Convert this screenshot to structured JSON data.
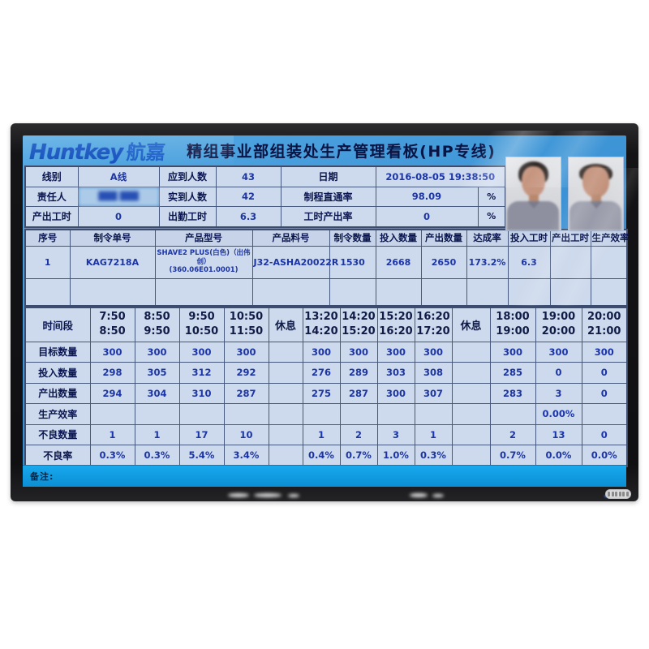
{
  "header": {
    "logo_en": "Huntkey",
    "logo_cn": "航嘉",
    "title": "精组事业部组装处生产管理看板(HP专线)"
  },
  "info_table": {
    "rows": [
      [
        "线别",
        "A线",
        "应到人数",
        "43",
        "日期",
        "2016-08-05 19:38:50"
      ],
      [
        "责任人",
        "███ ███",
        "实到人数",
        "42",
        "制程直通率",
        "98.09",
        "%"
      ],
      [
        "产出工时",
        "0",
        "出勤工时",
        "6.3",
        "工时产出率",
        "0",
        "%"
      ]
    ]
  },
  "main_table": {
    "headers": [
      "序号",
      "制令单号",
      "产品型号",
      "产品料号",
      "制令数量",
      "投入数量",
      "产出数量",
      "达成率",
      "投入工时",
      "产出工时",
      "生产效率"
    ],
    "rows": [
      [
        "1",
        "KAG7218A",
        "SHAVE2 PLUS(白色)（出伟创）\n(360.06E01.0001)",
        "J32-ASHA20022R",
        "1530",
        "2668",
        "2650",
        "173.2%",
        "6.3",
        "",
        ""
      ],
      [
        "",
        "",
        "",
        "",
        "",
        "",
        "",
        "",
        "",
        "",
        ""
      ]
    ]
  },
  "time_table": {
    "label_header": "时间段",
    "columns": [
      {
        "type": "time",
        "from": "7:50",
        "to": "8:50"
      },
      {
        "type": "time",
        "from": "8:50",
        "to": "9:50"
      },
      {
        "type": "time",
        "from": "9:50",
        "to": "10:50"
      },
      {
        "type": "time",
        "from": "10:50",
        "to": "11:50"
      },
      {
        "type": "break",
        "label": "休息"
      },
      {
        "type": "time",
        "from": "13:20",
        "to": "14:20"
      },
      {
        "type": "time",
        "from": "14:20",
        "to": "15:20"
      },
      {
        "type": "time",
        "from": "15:20",
        "to": "16:20"
      },
      {
        "type": "time",
        "from": "16:20",
        "to": "17:20"
      },
      {
        "type": "break",
        "label": "休息"
      },
      {
        "type": "time",
        "from": "18:00",
        "to": "19:00"
      },
      {
        "type": "time",
        "from": "19:00",
        "to": "20:00"
      },
      {
        "type": "time",
        "from": "20:00",
        "to": "21:00"
      }
    ],
    "rows": [
      {
        "label": "目标数量",
        "values": [
          "300",
          "300",
          "300",
          "300",
          "",
          "300",
          "300",
          "300",
          "300",
          "",
          "300",
          "300",
          "300"
        ]
      },
      {
        "label": "投入数量",
        "values": [
          "298",
          "305",
          "312",
          "292",
          "",
          "276",
          "289",
          "303",
          "308",
          "",
          "285",
          "0",
          "0"
        ]
      },
      {
        "label": "产出数量",
        "values": [
          "294",
          "304",
          "310",
          "287",
          "",
          "275",
          "287",
          "300",
          "307",
          "",
          "283",
          "3",
          "0"
        ]
      },
      {
        "label": "生产效率",
        "values": [
          "",
          "",
          "",
          "",
          "",
          "",
          "",
          "",
          "",
          "",
          "",
          "0.00%",
          ""
        ]
      },
      {
        "label": "不良数量",
        "values": [
          "1",
          "1",
          "17",
          "10",
          "",
          "1",
          "2",
          "3",
          "1",
          "",
          "2",
          "13",
          "0"
        ]
      },
      {
        "label": "不良率",
        "values": [
          "0.3%",
          "0.3%",
          "5.4%",
          "3.4%",
          "",
          "0.4%",
          "0.7%",
          "1.0%",
          "0.3%",
          "",
          "0.7%",
          "0.0%",
          "0.0%"
        ]
      }
    ]
  },
  "footer": {
    "remarks_label": "备注:"
  },
  "colors": {
    "screen_blue": "#3b92d4",
    "cell_bg": "#cdd9ec",
    "label_text": "#0b1650",
    "value_text": "#1c35a6",
    "remark_strip": "#109adf"
  }
}
